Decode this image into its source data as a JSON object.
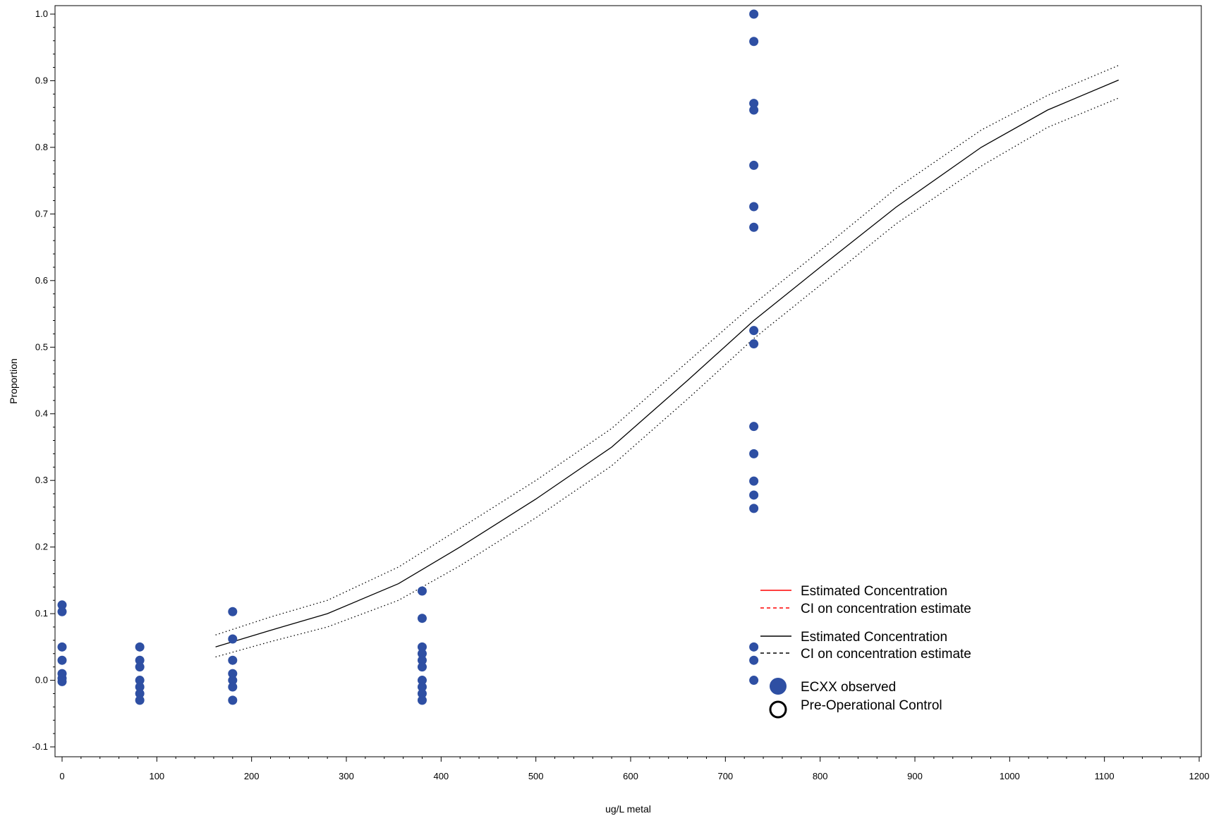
{
  "chart_data": {
    "type": "scatter",
    "title": "",
    "xlabel": "ug/L metal",
    "ylabel": "Proportion",
    "xlim": [
      0,
      1200
    ],
    "ylim": [
      -0.1,
      1.0
    ],
    "x_ticks": [
      0,
      100,
      200,
      300,
      400,
      500,
      600,
      700,
      800,
      900,
      1000,
      1100,
      1200
    ],
    "y_ticks": [
      -0.1,
      0.0,
      0.1,
      0.2,
      0.3,
      0.4,
      0.5,
      0.6,
      0.7,
      0.8,
      0.9,
      1.0
    ],
    "x_tick_labels": [
      "0",
      "100",
      "200",
      "300",
      "400",
      "500",
      "600",
      "700",
      "800",
      "900",
      "1000",
      "1100",
      "1200"
    ],
    "y_tick_labels": [
      "-0.1",
      "0.0",
      "0.1",
      "0.2",
      "0.3",
      "0.4",
      "0.5",
      "0.6",
      "0.7",
      "0.8",
      "0.9",
      "1.0"
    ],
    "grid": false,
    "legend_position": "bottom-right",
    "series": [
      {
        "name": "ECXX observed",
        "kind": "scatter",
        "color": "#2e4fa3",
        "points": [
          [
            0,
            0.113
          ],
          [
            0,
            0.103
          ],
          [
            0,
            0.05
          ],
          [
            0,
            0.03
          ],
          [
            0,
            0.01
          ],
          [
            0,
            0.003
          ],
          [
            0,
            -0.002
          ],
          [
            82,
            0.05
          ],
          [
            82,
            0.03
          ],
          [
            82,
            0.02
          ],
          [
            82,
            0.0
          ],
          [
            82,
            -0.01
          ],
          [
            82,
            -0.02
          ],
          [
            82,
            -0.03
          ],
          [
            180,
            0.103
          ],
          [
            180,
            0.062
          ],
          [
            180,
            0.03
          ],
          [
            180,
            0.01
          ],
          [
            180,
            0.0
          ],
          [
            180,
            -0.01
          ],
          [
            180,
            -0.03
          ],
          [
            380,
            0.134
          ],
          [
            380,
            0.093
          ],
          [
            380,
            0.05
          ],
          [
            380,
            0.04
          ],
          [
            380,
            0.03
          ],
          [
            380,
            0.02
          ],
          [
            380,
            0.0
          ],
          [
            380,
            -0.01
          ],
          [
            380,
            -0.02
          ],
          [
            380,
            -0.03
          ],
          [
            730,
            1.0
          ],
          [
            730,
            0.959
          ],
          [
            730,
            0.866
          ],
          [
            730,
            0.856
          ],
          [
            730,
            0.773
          ],
          [
            730,
            0.711
          ],
          [
            730,
            0.68
          ],
          [
            730,
            0.525
          ],
          [
            730,
            0.505
          ],
          [
            730,
            0.381
          ],
          [
            730,
            0.34
          ],
          [
            730,
            0.299
          ],
          [
            730,
            0.278
          ],
          [
            730,
            0.258
          ],
          [
            730,
            0.05
          ],
          [
            730,
            0.03
          ],
          [
            730,
            0.0
          ]
        ]
      },
      {
        "name": "Estimated Concentration",
        "kind": "line",
        "style": "solid",
        "color": "#000000",
        "points": [
          [
            162,
            0.05
          ],
          [
            220,
            0.075
          ],
          [
            280,
            0.1
          ],
          [
            355,
            0.145
          ],
          [
            420,
            0.2
          ],
          [
            500,
            0.272
          ],
          [
            580,
            0.35
          ],
          [
            660,
            0.45
          ],
          [
            730,
            0.54
          ],
          [
            800,
            0.62
          ],
          [
            880,
            0.71
          ],
          [
            970,
            0.8
          ],
          [
            1040,
            0.856
          ],
          [
            1115,
            0.901
          ]
        ]
      },
      {
        "name": "CI on concentration estimate",
        "kind": "line",
        "style": "dotted",
        "color": "#000000",
        "points": [
          [
            162,
            0.068
          ],
          [
            220,
            0.095
          ],
          [
            280,
            0.12
          ],
          [
            355,
            0.17
          ],
          [
            420,
            0.228
          ],
          [
            500,
            0.3
          ],
          [
            580,
            0.378
          ],
          [
            660,
            0.478
          ],
          [
            730,
            0.565
          ],
          [
            800,
            0.645
          ],
          [
            880,
            0.738
          ],
          [
            970,
            0.826
          ],
          [
            1040,
            0.878
          ],
          [
            1115,
            0.923
          ]
        ]
      },
      {
        "name": "CI on concentration estimate",
        "kind": "line",
        "style": "dotted",
        "color": "#000000",
        "points": [
          [
            162,
            0.035
          ],
          [
            220,
            0.058
          ],
          [
            280,
            0.08
          ],
          [
            355,
            0.12
          ],
          [
            420,
            0.172
          ],
          [
            500,
            0.244
          ],
          [
            580,
            0.322
          ],
          [
            660,
            0.422
          ],
          [
            730,
            0.513
          ],
          [
            800,
            0.593
          ],
          [
            880,
            0.685
          ],
          [
            970,
            0.772
          ],
          [
            1040,
            0.83
          ],
          [
            1115,
            0.874
          ]
        ]
      }
    ],
    "legend": [
      {
        "label": "Estimated Concentration",
        "marker": "line-solid",
        "color": "#ff0000"
      },
      {
        "label": "CI on concentration estimate",
        "marker": "line-dashed",
        "color": "#ff0000"
      },
      {
        "label": "Estimated Concentration",
        "marker": "line-solid",
        "color": "#000000"
      },
      {
        "label": "CI on concentration estimate",
        "marker": "line-dashed",
        "color": "#000000"
      },
      {
        "label": "ECXX observed",
        "marker": "filled-circle",
        "color": "#2e4fa3"
      },
      {
        "label": "Pre-Operational Control",
        "marker": "open-circle",
        "color": "#000000"
      }
    ]
  }
}
